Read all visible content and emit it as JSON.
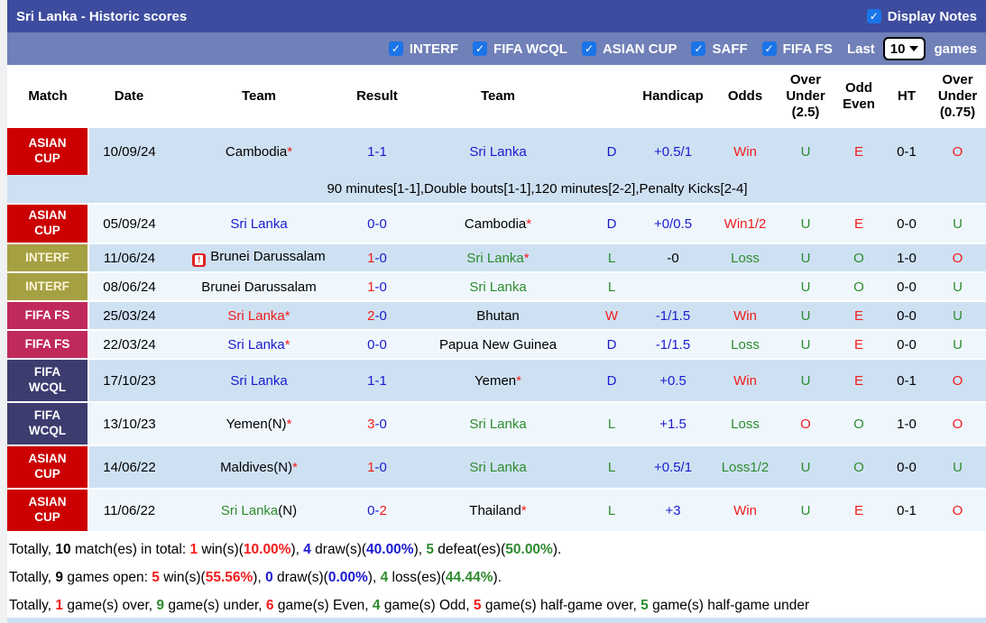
{
  "colors": {
    "topbar": "#3d4c9e",
    "subbar": "#7080b8",
    "checkbox": "#1b74e8",
    "rowDark": "#cee1f2",
    "rowLight": "#eff7fd",
    "asian": "#cc0001",
    "interf": "#a5a042",
    "interfText": "#faf6da",
    "fifafs": "#c02a5b",
    "wcql": "#3d3c6f",
    "blue": "#1a1ad1",
    "green": "#2e8b2e",
    "red": "#f21c1c",
    "black": "#000000"
  },
  "header": {
    "title": "Sri Lanka - Historic scores",
    "display_notes": {
      "label": "Display Notes",
      "checked": true
    }
  },
  "filters": {
    "competitions": [
      {
        "label": "INTERF",
        "checked": true
      },
      {
        "label": "FIFA WCQL",
        "checked": true
      },
      {
        "label": "ASIAN CUP",
        "checked": true
      },
      {
        "label": "SAFF",
        "checked": true
      },
      {
        "label": "FIFA FS",
        "checked": true
      }
    ],
    "last_label": "Last",
    "games_count": "10",
    "games_label": "games"
  },
  "table": {
    "columns": [
      "Match",
      "Date",
      "Team",
      "Result",
      "Team",
      "",
      "Handicap",
      "Odds",
      "Over Under (2.5)",
      "Odd Even",
      "HT",
      "Over Under (0.75)"
    ],
    "rows": [
      {
        "competition": "ASIAN CUP",
        "competition_color": "asian",
        "date": "10/09/24",
        "team1": [
          {
            "t": "Cambodia"
          },
          {
            "t": "*",
            "c": "red"
          }
        ],
        "team1_icon": null,
        "result": [
          {
            "t": "1-1",
            "c": "blue"
          }
        ],
        "team2": [
          {
            "t": "Sri Lanka",
            "c": "blue"
          }
        ],
        "letter": {
          "t": "D",
          "c": "blue"
        },
        "handicap": {
          "t": "+0.5/1",
          "c": "blue"
        },
        "odds": {
          "t": "Win",
          "c": "red"
        },
        "over_under_25": {
          "t": "U",
          "c": "green"
        },
        "odd_even": {
          "t": "E",
          "c": "red"
        },
        "ht": {
          "t": "0-1"
        },
        "over_under_075": {
          "t": "O",
          "c": "red"
        },
        "note": "90 minutes[1-1],Double bouts[1-1],120 minutes[2-2],Penalty Kicks[2-4]"
      },
      {
        "competition": "ASIAN CUP",
        "competition_color": "asian",
        "date": "05/09/24",
        "team1": [
          {
            "t": "Sri Lanka",
            "c": "blue"
          }
        ],
        "team1_icon": null,
        "result": [
          {
            "t": "0-0",
            "c": "blue"
          }
        ],
        "team2": [
          {
            "t": "Cambodia"
          },
          {
            "t": "*",
            "c": "red"
          }
        ],
        "letter": {
          "t": "D",
          "c": "blue"
        },
        "handicap": {
          "t": "+0/0.5",
          "c": "blue"
        },
        "odds": {
          "t": "Win1/2",
          "c": "red"
        },
        "over_under_25": {
          "t": "U",
          "c": "green"
        },
        "odd_even": {
          "t": "E",
          "c": "red"
        },
        "ht": {
          "t": "0-0"
        },
        "over_under_075": {
          "t": "U",
          "c": "green"
        },
        "note": null
      },
      {
        "competition": "INTERF",
        "competition_color": "interf",
        "date": "11/06/24",
        "team1": [
          {
            "t": "Brunei Darussalam"
          }
        ],
        "team1_icon": "red-card",
        "result": [
          {
            "t": "1",
            "c": "red"
          },
          {
            "t": "-0",
            "c": "blue"
          }
        ],
        "team2": [
          {
            "t": "Sri Lanka",
            "c": "green"
          },
          {
            "t": "*",
            "c": "red"
          }
        ],
        "letter": {
          "t": "L",
          "c": "green"
        },
        "handicap": {
          "t": "-0",
          "c": "black"
        },
        "odds": {
          "t": "Loss",
          "c": "green"
        },
        "over_under_25": {
          "t": "U",
          "c": "green"
        },
        "odd_even": {
          "t": "O",
          "c": "green"
        },
        "ht": {
          "t": "1-0"
        },
        "over_under_075": {
          "t": "O",
          "c": "red"
        },
        "note": null
      },
      {
        "competition": "INTERF",
        "competition_color": "interf",
        "date": "08/06/24",
        "team1": [
          {
            "t": "Brunei Darussalam"
          }
        ],
        "team1_icon": null,
        "result": [
          {
            "t": "1",
            "c": "red"
          },
          {
            "t": "-0",
            "c": "blue"
          }
        ],
        "team2": [
          {
            "t": "Sri Lanka",
            "c": "green"
          }
        ],
        "letter": {
          "t": "L",
          "c": "green"
        },
        "handicap": null,
        "odds": null,
        "over_under_25": {
          "t": "U",
          "c": "green"
        },
        "odd_even": {
          "t": "O",
          "c": "green"
        },
        "ht": {
          "t": "0-0"
        },
        "over_under_075": {
          "t": "U",
          "c": "green"
        },
        "note": null
      },
      {
        "competition": "FIFA FS",
        "competition_color": "fifafs",
        "date": "25/03/24",
        "team1": [
          {
            "t": "Sri Lanka",
            "c": "red"
          },
          {
            "t": "*",
            "c": "red"
          }
        ],
        "team1_icon": null,
        "result": [
          {
            "t": "2",
            "c": "red"
          },
          {
            "t": "-0",
            "c": "blue"
          }
        ],
        "team2": [
          {
            "t": "Bhutan"
          }
        ],
        "letter": {
          "t": "W",
          "c": "red"
        },
        "handicap": {
          "t": "-1/1.5",
          "c": "blue"
        },
        "odds": {
          "t": "Win",
          "c": "red"
        },
        "over_under_25": {
          "t": "U",
          "c": "green"
        },
        "odd_even": {
          "t": "E",
          "c": "red"
        },
        "ht": {
          "t": "0-0"
        },
        "over_under_075": {
          "t": "U",
          "c": "green"
        },
        "note": null
      },
      {
        "competition": "FIFA FS",
        "competition_color": "fifafs",
        "date": "22/03/24",
        "team1": [
          {
            "t": "Sri Lanka",
            "c": "blue"
          },
          {
            "t": "*",
            "c": "red"
          }
        ],
        "team1_icon": null,
        "result": [
          {
            "t": "0-0",
            "c": "blue"
          }
        ],
        "team2": [
          {
            "t": "Papua New Guinea"
          }
        ],
        "letter": {
          "t": "D",
          "c": "blue"
        },
        "handicap": {
          "t": "-1/1.5",
          "c": "blue"
        },
        "odds": {
          "t": "Loss",
          "c": "green"
        },
        "over_under_25": {
          "t": "U",
          "c": "green"
        },
        "odd_even": {
          "t": "E",
          "c": "red"
        },
        "ht": {
          "t": "0-0"
        },
        "over_under_075": {
          "t": "U",
          "c": "green"
        },
        "note": null
      },
      {
        "competition": "FIFA WCQL",
        "competition_color": "wcql",
        "date": "17/10/23",
        "team1": [
          {
            "t": "Sri Lanka",
            "c": "blue"
          }
        ],
        "team1_icon": null,
        "result": [
          {
            "t": "1-1",
            "c": "blue"
          }
        ],
        "team2": [
          {
            "t": "Yemen"
          },
          {
            "t": "*",
            "c": "red"
          }
        ],
        "letter": {
          "t": "D",
          "c": "blue"
        },
        "handicap": {
          "t": "+0.5",
          "c": "blue"
        },
        "odds": {
          "t": "Win",
          "c": "red"
        },
        "over_under_25": {
          "t": "U",
          "c": "green"
        },
        "odd_even": {
          "t": "E",
          "c": "red"
        },
        "ht": {
          "t": "0-1"
        },
        "over_under_075": {
          "t": "O",
          "c": "red"
        },
        "note": null
      },
      {
        "competition": "FIFA WCQL",
        "competition_color": "wcql",
        "date": "13/10/23",
        "team1": [
          {
            "t": "Yemen(N)"
          },
          {
            "t": "*",
            "c": "red"
          }
        ],
        "team1_icon": null,
        "result": [
          {
            "t": "3",
            "c": "red"
          },
          {
            "t": "-0",
            "c": "blue"
          }
        ],
        "team2": [
          {
            "t": "Sri Lanka",
            "c": "green"
          }
        ],
        "letter": {
          "t": "L",
          "c": "green"
        },
        "handicap": {
          "t": "+1.5",
          "c": "blue"
        },
        "odds": {
          "t": "Loss",
          "c": "green"
        },
        "over_under_25": {
          "t": "O",
          "c": "red"
        },
        "odd_even": {
          "t": "O",
          "c": "green"
        },
        "ht": {
          "t": "1-0"
        },
        "over_under_075": {
          "t": "O",
          "c": "red"
        },
        "note": null
      },
      {
        "competition": "ASIAN CUP",
        "competition_color": "asian",
        "date": "14/06/22",
        "team1": [
          {
            "t": "Maldives(N)"
          },
          {
            "t": "*",
            "c": "red"
          }
        ],
        "team1_icon": null,
        "result": [
          {
            "t": "1",
            "c": "red"
          },
          {
            "t": "-0",
            "c": "blue"
          }
        ],
        "team2": [
          {
            "t": "Sri Lanka",
            "c": "green"
          }
        ],
        "letter": {
          "t": "L",
          "c": "green"
        },
        "handicap": {
          "t": "+0.5/1",
          "c": "blue"
        },
        "odds": {
          "t": "Loss1/2",
          "c": "green"
        },
        "over_under_25": {
          "t": "U",
          "c": "green"
        },
        "odd_even": {
          "t": "O",
          "c": "green"
        },
        "ht": {
          "t": "0-0"
        },
        "over_under_075": {
          "t": "U",
          "c": "green"
        },
        "note": null
      },
      {
        "competition": "ASIAN CUP",
        "competition_color": "asian",
        "date": "11/06/22",
        "team1": [
          {
            "t": "Sri Lanka",
            "c": "green"
          },
          {
            "t": "(N)",
            "c": "black"
          }
        ],
        "team1_icon": null,
        "result": [
          {
            "t": "0-",
            "c": "blue"
          },
          {
            "t": "2",
            "c": "red"
          }
        ],
        "team2": [
          {
            "t": "Thailand"
          },
          {
            "t": "*",
            "c": "red"
          }
        ],
        "letter": {
          "t": "L",
          "c": "green"
        },
        "handicap": {
          "t": "+3",
          "c": "blue"
        },
        "odds": {
          "t": "Win",
          "c": "red"
        },
        "over_under_25": {
          "t": "U",
          "c": "green"
        },
        "odd_even": {
          "t": "E",
          "c": "red"
        },
        "ht": {
          "t": "0-1"
        },
        "over_under_075": {
          "t": "O",
          "c": "red"
        },
        "note": null
      }
    ]
  },
  "footer": {
    "lines": [
      [
        {
          "t": "Totally, "
        },
        {
          "t": "10",
          "b": true
        },
        {
          "t": " match(es) in total: "
        },
        {
          "t": "1",
          "c": "red",
          "b": true
        },
        {
          "t": " win(s)("
        },
        {
          "t": "10.00%",
          "c": "red",
          "b": true
        },
        {
          "t": "), "
        },
        {
          "t": "4",
          "c": "blue",
          "b": true
        },
        {
          "t": " draw(s)("
        },
        {
          "t": "40.00%",
          "c": "blue",
          "b": true
        },
        {
          "t": "), "
        },
        {
          "t": "5",
          "c": "green",
          "b": true
        },
        {
          "t": " defeat(es)("
        },
        {
          "t": "50.00%",
          "c": "green",
          "b": true
        },
        {
          "t": ")."
        }
      ],
      [
        {
          "t": "Totally, "
        },
        {
          "t": "9",
          "b": true
        },
        {
          "t": " games open: "
        },
        {
          "t": "5",
          "c": "red",
          "b": true
        },
        {
          "t": " win(s)("
        },
        {
          "t": "55.56%",
          "c": "red",
          "b": true
        },
        {
          "t": "), "
        },
        {
          "t": "0",
          "c": "blue",
          "b": true
        },
        {
          "t": " draw(s)("
        },
        {
          "t": "0.00%",
          "c": "blue",
          "b": true
        },
        {
          "t": "), "
        },
        {
          "t": "4",
          "c": "green",
          "b": true
        },
        {
          "t": " loss(es)("
        },
        {
          "t": "44.44%",
          "c": "green",
          "b": true
        },
        {
          "t": ")."
        }
      ],
      [
        {
          "t": "Totally, "
        },
        {
          "t": "1",
          "c": "red",
          "b": true
        },
        {
          "t": " game(s) over, "
        },
        {
          "t": "9",
          "c": "green",
          "b": true
        },
        {
          "t": " game(s) under, "
        },
        {
          "t": "6",
          "c": "red",
          "b": true
        },
        {
          "t": " game(s) Even, "
        },
        {
          "t": "4",
          "c": "green",
          "b": true
        },
        {
          "t": " game(s) Odd, "
        },
        {
          "t": "5",
          "c": "red",
          "b": true
        },
        {
          "t": " game(s) half-game over, "
        },
        {
          "t": "5",
          "c": "green",
          "b": true
        },
        {
          "t": " game(s) half-game under"
        }
      ]
    ]
  },
  "icons": {
    "checkmark": "✓",
    "red_card_glyph": "!"
  }
}
